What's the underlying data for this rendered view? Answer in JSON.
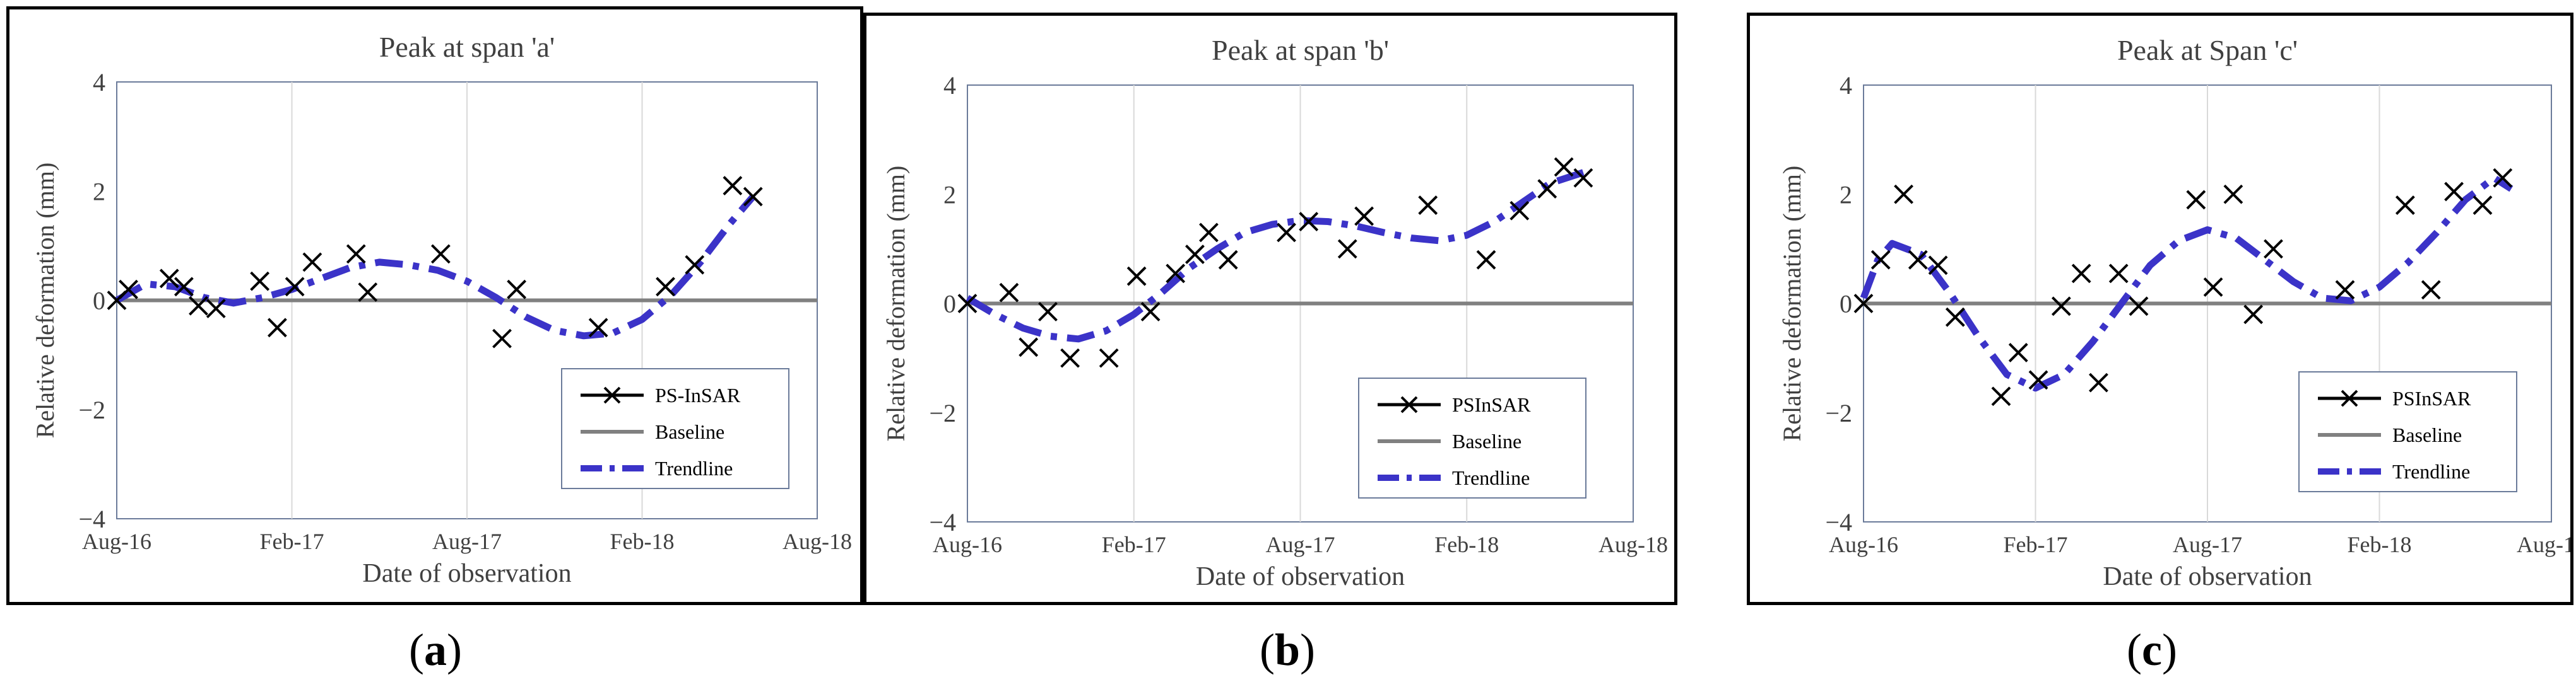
{
  "x_ticks": [
    "Aug-16",
    "Feb-17",
    "Aug-17",
    "Feb-18",
    "Aug-18"
  ],
  "y_ticks": [
    4,
    2,
    0,
    -2,
    -4
  ],
  "colors": {
    "ps": "#000000",
    "baseline": "#808080",
    "trend": "#3b33c8",
    "plot_border": "#6b7b9a"
  },
  "chart_data": [
    {
      "type": "scatter",
      "panel_caption": "a",
      "title": "Peak at span 'a'",
      "xlabel": "Date of observation",
      "ylabel": "Relative deformation (mm)",
      "xlim": [
        0,
        24
      ],
      "ylim": [
        -4,
        4
      ],
      "legend": {
        "ps": "PS-InSAR",
        "baseline": "Baseline",
        "trend": "Trendline"
      },
      "ps_points": [
        [
          0,
          0
        ],
        [
          0.4,
          0.2
        ],
        [
          1.8,
          0.4
        ],
        [
          2.3,
          0.25
        ],
        [
          2.8,
          -0.1
        ],
        [
          3.4,
          -0.15
        ],
        [
          4.9,
          0.35
        ],
        [
          5.5,
          -0.5
        ],
        [
          6.1,
          0.25
        ],
        [
          6.7,
          0.7
        ],
        [
          8.2,
          0.85
        ],
        [
          8.6,
          0.15
        ],
        [
          11.1,
          0.85
        ],
        [
          13.2,
          -0.7
        ],
        [
          13.7,
          0.2
        ],
        [
          16.5,
          -0.5
        ],
        [
          18.8,
          0.25
        ],
        [
          19.8,
          0.65
        ],
        [
          21.1,
          2.1
        ],
        [
          21.8,
          1.9
        ]
      ],
      "trendline": [
        [
          0,
          0
        ],
        [
          1,
          0.3
        ],
        [
          2,
          0.25
        ],
        [
          3,
          0.05
        ],
        [
          4,
          -0.05
        ],
        [
          5,
          0.05
        ],
        [
          6,
          0.2
        ],
        [
          7,
          0.4
        ],
        [
          8,
          0.6
        ],
        [
          9,
          0.7
        ],
        [
          10,
          0.65
        ],
        [
          11,
          0.55
        ],
        [
          12,
          0.35
        ],
        [
          13,
          0.05
        ],
        [
          14,
          -0.3
        ],
        [
          15,
          -0.55
        ],
        [
          16,
          -0.65
        ],
        [
          17,
          -0.6
        ],
        [
          18,
          -0.35
        ],
        [
          19,
          0.1
        ],
        [
          20,
          0.7
        ],
        [
          21,
          1.4
        ],
        [
          21.8,
          1.9
        ]
      ],
      "baseline": 0
    },
    {
      "type": "scatter",
      "panel_caption": "b",
      "title": "Peak at span 'b'",
      "xlabel": "Date of observation",
      "ylabel": "Relative deformation (mm)",
      "xlim": [
        0,
        24
      ],
      "ylim": [
        -4,
        4
      ],
      "legend": {
        "ps": "PSInSAR",
        "baseline": "Baseline",
        "trend": "Trendline"
      },
      "ps_points": [
        [
          0,
          0
        ],
        [
          1.5,
          0.2
        ],
        [
          2.2,
          -0.8
        ],
        [
          2.9,
          -0.15
        ],
        [
          3.7,
          -1.0
        ],
        [
          5.1,
          -1.0
        ],
        [
          6.1,
          0.5
        ],
        [
          6.6,
          -0.15
        ],
        [
          7.5,
          0.55
        ],
        [
          8.2,
          0.9
        ],
        [
          8.7,
          1.3
        ],
        [
          9.4,
          0.8
        ],
        [
          11.5,
          1.3
        ],
        [
          12.3,
          1.5
        ],
        [
          13.7,
          1.0
        ],
        [
          14.3,
          1.6
        ],
        [
          16.6,
          1.8
        ],
        [
          18.7,
          0.8
        ],
        [
          19.9,
          1.7
        ],
        [
          20.9,
          2.1
        ],
        [
          21.5,
          2.5
        ],
        [
          22.2,
          2.3
        ]
      ],
      "trendline": [
        [
          0,
          0.1
        ],
        [
          1,
          -0.2
        ],
        [
          2,
          -0.45
        ],
        [
          3,
          -0.6
        ],
        [
          4,
          -0.65
        ],
        [
          5,
          -0.5
        ],
        [
          6,
          -0.2
        ],
        [
          7,
          0.2
        ],
        [
          8,
          0.65
        ],
        [
          9,
          1.0
        ],
        [
          10,
          1.3
        ],
        [
          11,
          1.45
        ],
        [
          12,
          1.52
        ],
        [
          13,
          1.5
        ],
        [
          14,
          1.42
        ],
        [
          15,
          1.3
        ],
        [
          16,
          1.2
        ],
        [
          17,
          1.15
        ],
        [
          18,
          1.25
        ],
        [
          19,
          1.5
        ],
        [
          20,
          1.85
        ],
        [
          21,
          2.2
        ],
        [
          22.2,
          2.4
        ]
      ],
      "baseline": 0
    },
    {
      "type": "scatter",
      "panel_caption": "c",
      "title": "Peak at Span 'c'",
      "xlabel": "Date of observation",
      "ylabel": "Relative deformation (mm)",
      "xlim": [
        0,
        24
      ],
      "ylim": [
        -4,
        4
      ],
      "legend": {
        "ps": "PSInSAR",
        "baseline": "Baseline",
        "trend": "Trendline"
      },
      "ps_points": [
        [
          0,
          0
        ],
        [
          0.6,
          0.8
        ],
        [
          1.4,
          2.0
        ],
        [
          1.9,
          0.8
        ],
        [
          2.6,
          0.7
        ],
        [
          3.2,
          -0.25
        ],
        [
          4.8,
          -1.7
        ],
        [
          5.4,
          -0.9
        ],
        [
          6.1,
          -1.4
        ],
        [
          6.9,
          -0.05
        ],
        [
          7.6,
          0.55
        ],
        [
          8.2,
          -1.45
        ],
        [
          8.9,
          0.55
        ],
        [
          9.6,
          -0.05
        ],
        [
          11.6,
          1.9
        ],
        [
          12.2,
          0.3
        ],
        [
          12.9,
          2.0
        ],
        [
          13.6,
          -0.2
        ],
        [
          14.3,
          1.0
        ],
        [
          16.8,
          0.25
        ],
        [
          18.9,
          1.8
        ],
        [
          19.8,
          0.25
        ],
        [
          20.6,
          2.05
        ],
        [
          21.6,
          1.8
        ],
        [
          22.3,
          2.3
        ]
      ],
      "trendline": [
        [
          0,
          0.1
        ],
        [
          0.5,
          0.8
        ],
        [
          1,
          1.1
        ],
        [
          2,
          0.9
        ],
        [
          3,
          0.2
        ],
        [
          4,
          -0.6
        ],
        [
          5,
          -1.3
        ],
        [
          6,
          -1.55
        ],
        [
          7,
          -1.3
        ],
        [
          8,
          -0.7
        ],
        [
          9,
          0.0
        ],
        [
          10,
          0.7
        ],
        [
          11,
          1.15
        ],
        [
          12,
          1.35
        ],
        [
          13,
          1.2
        ],
        [
          14,
          0.8
        ],
        [
          15,
          0.4
        ],
        [
          16,
          0.1
        ],
        [
          17,
          0.05
        ],
        [
          18,
          0.3
        ],
        [
          19,
          0.75
        ],
        [
          20,
          1.3
        ],
        [
          21,
          1.9
        ],
        [
          22,
          2.3
        ],
        [
          22.6,
          2.1
        ]
      ],
      "baseline": 0
    }
  ]
}
